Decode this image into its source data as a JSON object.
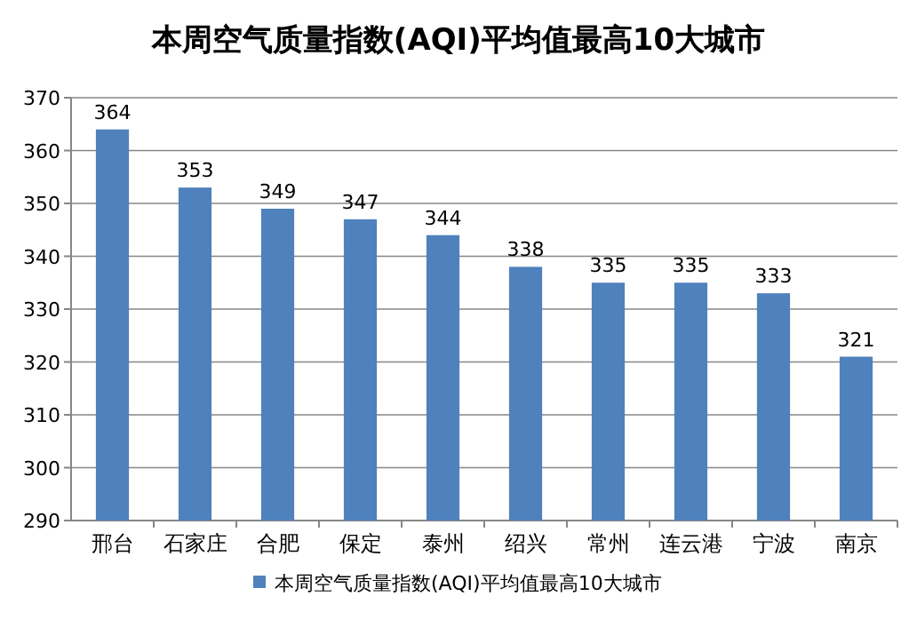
{
  "chart_data": {
    "type": "bar",
    "title": "本周空气质量指数(AQI)平均值最高10大城市",
    "categories": [
      "邢台",
      "石家庄",
      "合肥",
      "保定",
      "泰州",
      "绍兴",
      "常州",
      "连云港",
      "宁波",
      "南京"
    ],
    "series": [
      {
        "name": "本周空气质量指数(AQI)平均值最高10大城市",
        "color": "#4f81bd",
        "values": [
          364,
          353,
          349,
          347,
          344,
          338,
          335,
          335,
          333,
          321
        ]
      }
    ],
    "ylim": [
      290,
      370
    ],
    "yticks": [
      290,
      300,
      310,
      320,
      330,
      340,
      350,
      360,
      370
    ],
    "grid": "y",
    "legend": "bottom",
    "data_labels": true
  }
}
